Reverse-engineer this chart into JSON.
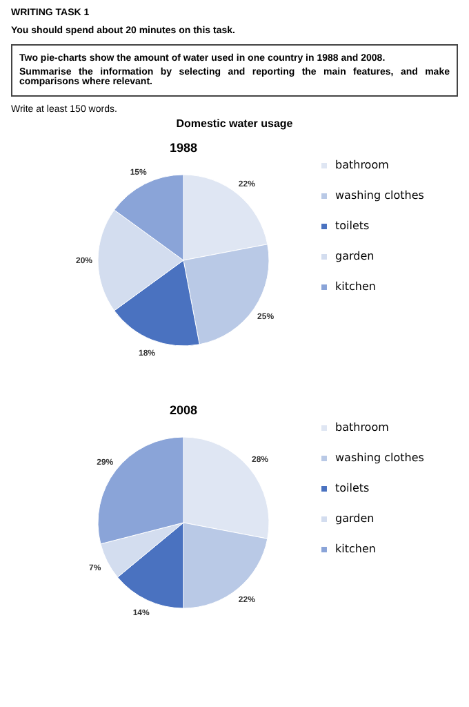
{
  "chart_data": [
    {
      "type": "pie",
      "title": "1988",
      "annotations": [
        "WRITING TASK 1",
        "You should spend about 20 minutes on this task.",
        "Two pie-charts show the amount of water used in one country in 1988 and 2008.",
        "Summarise the information by selecting and reporting the main features, and make comparisons where relevant.",
        "Write at least 150 words.",
        "Domestic water usage"
      ],
      "categories": [
        "bathroom",
        "washing clothes",
        "toilets",
        "garden",
        "kitchen"
      ],
      "values": [
        22,
        25,
        18,
        20,
        15
      ],
      "value_labels": [
        "22%",
        "25%",
        "18%",
        "20%",
        "15%"
      ],
      "colors": [
        "#dfe6f3",
        "#b9c9e6",
        "#4a72c0",
        "#d3ddef",
        "#8aa4d8"
      ],
      "legend": "right"
    },
    {
      "type": "pie",
      "title": "2008",
      "categories": [
        "bathroom",
        "washing clothes",
        "toilets",
        "garden",
        "kitchen"
      ],
      "values": [
        28,
        22,
        14,
        7,
        29
      ],
      "value_labels": [
        "28%",
        "22%",
        "14%",
        "7%",
        "29%"
      ],
      "colors": [
        "#dfe6f3",
        "#b9c9e6",
        "#4a72c0",
        "#d3ddef",
        "#8aa4d8"
      ],
      "legend": "right"
    }
  ]
}
